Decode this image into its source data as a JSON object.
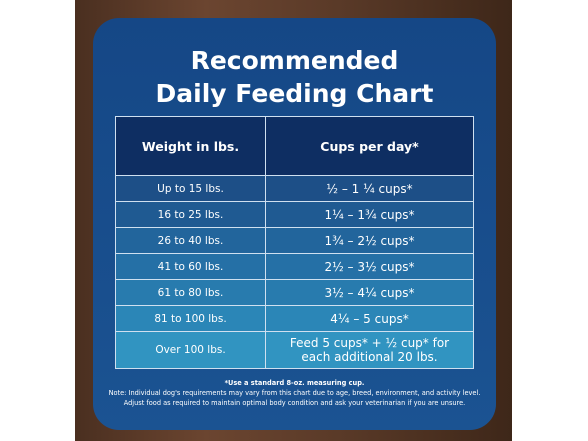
{
  "header": {
    "title": [
      "Recommended",
      "Daily Feeding Chart"
    ]
  },
  "table": {
    "columns": [
      "Weight in lbs.",
      "Cups per day*"
    ],
    "rows": [
      {
        "weight": "Up to 15 lbs.",
        "cups": [
          "½ – 1 ¼ cups*"
        ]
      },
      {
        "weight": "16 to 25 lbs.",
        "cups": [
          "1¼ – 1¾  cups*"
        ]
      },
      {
        "weight": "26 to 40 lbs.",
        "cups": [
          "1¾ – 2½ cups*"
        ]
      },
      {
        "weight": "41 to 60 lbs.",
        "cups": [
          "2½ – 3½ cups*"
        ]
      },
      {
        "weight": "61 to 80 lbs.",
        "cups": [
          "3½ – 4¼ cups*"
        ]
      },
      {
        "weight": "81 to 100 lbs.",
        "cups": [
          "4¼ – 5 cups*"
        ]
      },
      {
        "weight": "Over 100 lbs.",
        "cups": [
          "Feed 5 cups* + ½ cup* for",
          "each additional 20 lbs."
        ]
      }
    ]
  },
  "footnotes": [
    "*Use a standard 8-oz. measuring cup.",
    "Note: Individual dog's requirements may vary from this chart due to age, breed, environment, and activity level.",
    "Adjust food as required to maintain optimal body condition and ask your veterinarian if you are unsure."
  ]
}
